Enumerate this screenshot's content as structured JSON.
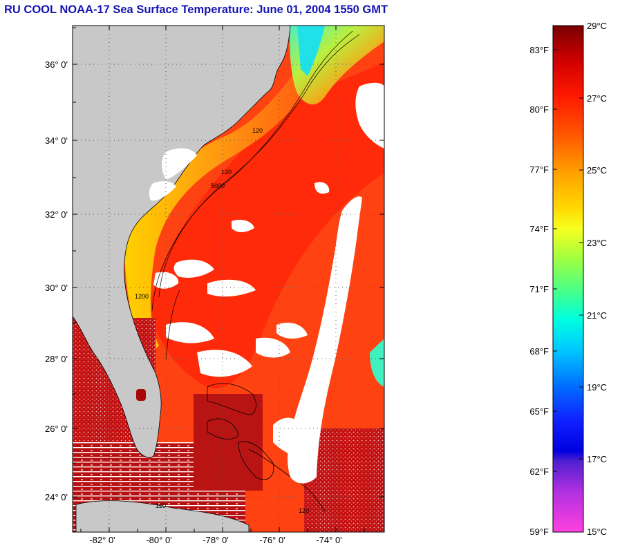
{
  "title": "RU COOL  NOAA-17  Sea Surface Temperature:  June 01, 2004 1550 GMT",
  "map": {
    "lat_labels": [
      "36° 0'",
      "34° 0'",
      "32° 0'",
      "30° 0'",
      "28° 0'",
      "26° 0'",
      "24° 0'"
    ],
    "lon_labels": [
      "-82° 0'",
      "-80° 0'",
      "-78° 0'",
      "-76° 0'",
      "-74° 0'"
    ],
    "contour_labels": [
      "120",
      "120",
      "5000",
      "1200",
      "120",
      "120"
    ]
  },
  "colorbar": {
    "fahrenheit_labels": [
      "83°F",
      "80°F",
      "77°F",
      "74°F",
      "71°F",
      "68°F",
      "65°F",
      "62°F",
      "59°F"
    ],
    "celsius_labels": [
      "29°C",
      "27°C",
      "25°C",
      "23°C",
      "21°C",
      "19°C",
      "17°C",
      "15°C"
    ]
  },
  "colors": {
    "title": "#1414b4",
    "land": "#c8c8c8",
    "ocean_warm": "#ff3a10",
    "gulf_stream": "#ff2a0a",
    "shelf_cool": "#ff9a10",
    "cloud": "#ffffff"
  }
}
